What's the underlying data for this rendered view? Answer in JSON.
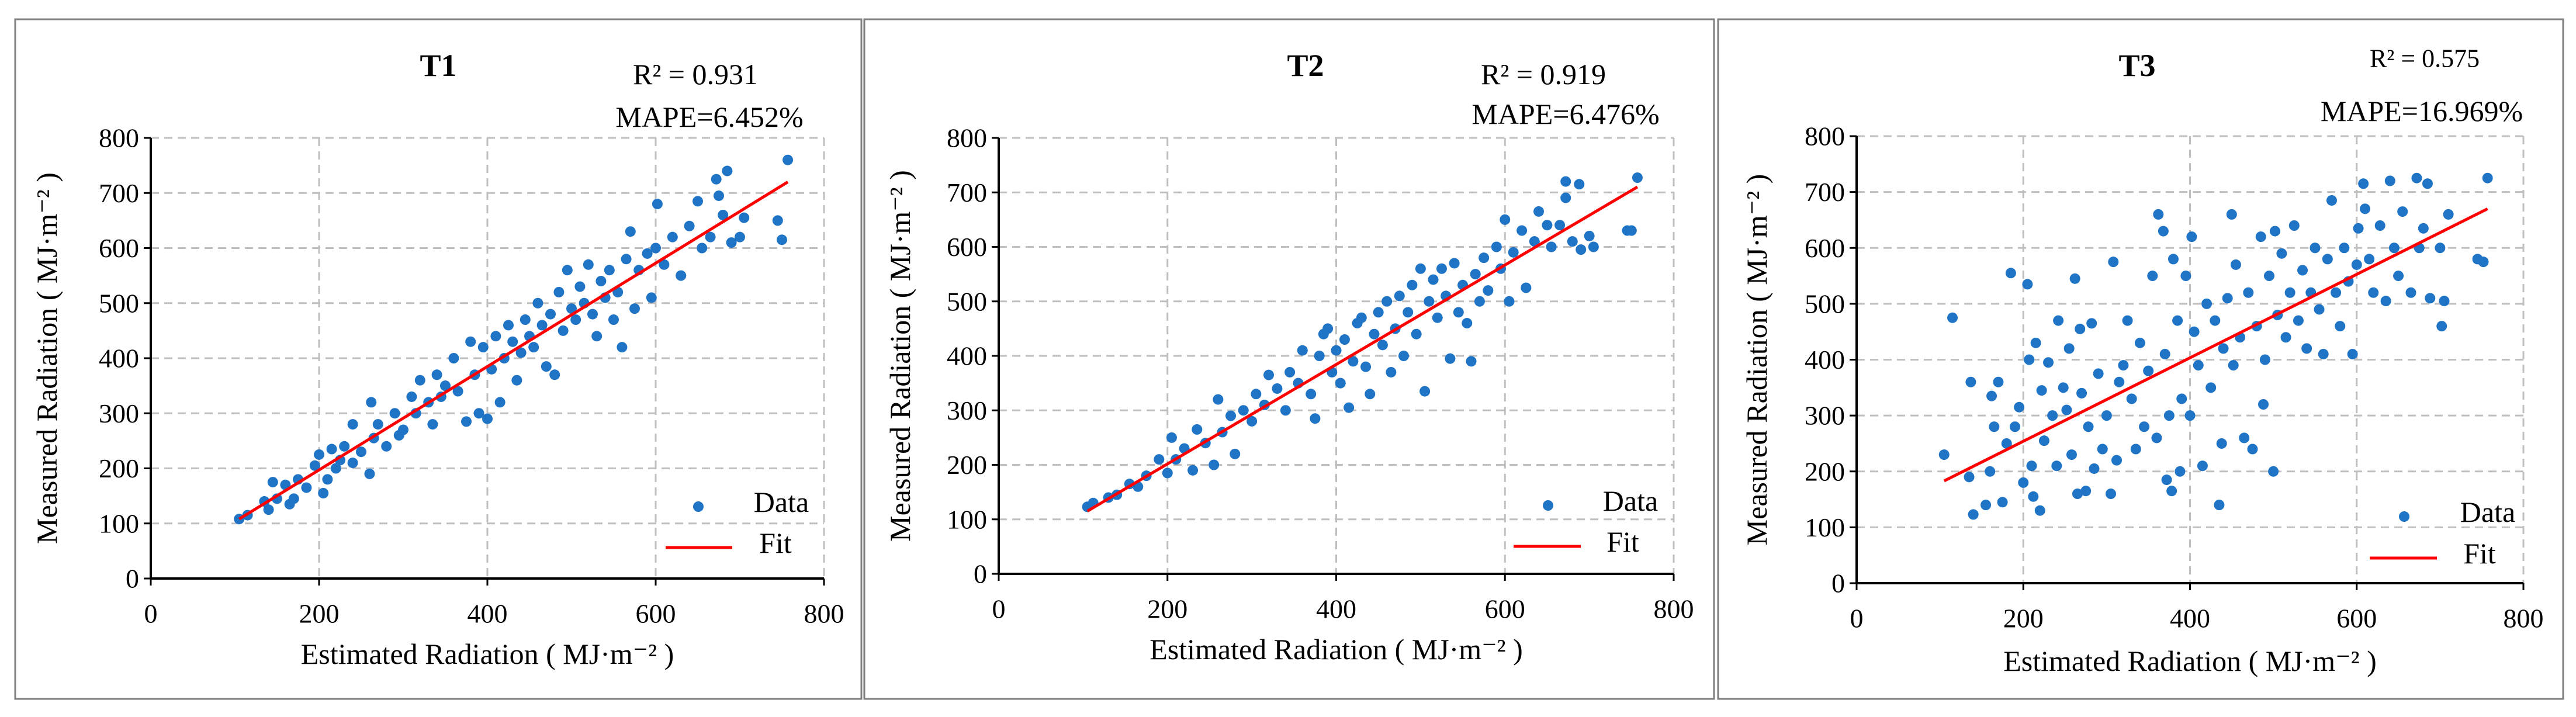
{
  "chart_data": [
    {
      "type": "scatter",
      "title": "T1",
      "r2_label": "R² = 0.931",
      "mape_label": "MAPE=6.452%",
      "xlabel": "Estimated Radiation ( MJ·m⁻² )",
      "ylabel": "Measured Radiation ( MJ·m⁻² )",
      "xlim": [
        0,
        800
      ],
      "ylim": [
        0,
        800
      ],
      "xticks": [
        "0",
        "200",
        "400",
        "600",
        "800"
      ],
      "yticks": [
        "0",
        "100",
        "200",
        "300",
        "400",
        "500",
        "600",
        "700",
        "800"
      ],
      "grid": true,
      "legend": {
        "placement": "bottom-right",
        "entries": [
          "Data",
          "Fit"
        ]
      },
      "colors": {
        "data": "#1f74c6",
        "fit": "#ff0000"
      },
      "fit": {
        "x": [
          105,
          757
        ],
        "y": [
          108,
          720
        ]
      },
      "points": [
        [
          105,
          108
        ],
        [
          115,
          115
        ],
        [
          135,
          140
        ],
        [
          140,
          125
        ],
        [
          145,
          175
        ],
        [
          150,
          145
        ],
        [
          160,
          170
        ],
        [
          165,
          135
        ],
        [
          170,
          145
        ],
        [
          175,
          180
        ],
        [
          185,
          165
        ],
        [
          195,
          205
        ],
        [
          200,
          225
        ],
        [
          205,
          155
        ],
        [
          210,
          180
        ],
        [
          215,
          235
        ],
        [
          220,
          200
        ],
        [
          225,
          215
        ],
        [
          230,
          240
        ],
        [
          240,
          280
        ],
        [
          240,
          210
        ],
        [
          250,
          230
        ],
        [
          260,
          190
        ],
        [
          262,
          320
        ],
        [
          265,
          255
        ],
        [
          270,
          280
        ],
        [
          280,
          240
        ],
        [
          290,
          300
        ],
        [
          295,
          260
        ],
        [
          300,
          270
        ],
        [
          310,
          330
        ],
        [
          315,
          300
        ],
        [
          320,
          360
        ],
        [
          330,
          320
        ],
        [
          335,
          280
        ],
        [
          340,
          370
        ],
        [
          345,
          330
        ],
        [
          350,
          350
        ],
        [
          360,
          400
        ],
        [
          365,
          340
        ],
        [
          375,
          285
        ],
        [
          380,
          430
        ],
        [
          385,
          370
        ],
        [
          390,
          300
        ],
        [
          395,
          420
        ],
        [
          400,
          290
        ],
        [
          405,
          380
        ],
        [
          410,
          440
        ],
        [
          415,
          320
        ],
        [
          420,
          400
        ],
        [
          425,
          460
        ],
        [
          430,
          430
        ],
        [
          435,
          360
        ],
        [
          440,
          410
        ],
        [
          445,
          470
        ],
        [
          450,
          440
        ],
        [
          455,
          420
        ],
        [
          460,
          500
        ],
        [
          465,
          460
        ],
        [
          470,
          385
        ],
        [
          475,
          480
        ],
        [
          480,
          370
        ],
        [
          485,
          520
        ],
        [
          490,
          450
        ],
        [
          495,
          560
        ],
        [
          500,
          490
        ],
        [
          505,
          470
        ],
        [
          510,
          530
        ],
        [
          515,
          500
        ],
        [
          520,
          570
        ],
        [
          525,
          480
        ],
        [
          530,
          440
        ],
        [
          535,
          540
        ],
        [
          540,
          510
        ],
        [
          545,
          560
        ],
        [
          550,
          470
        ],
        [
          555,
          520
        ],
        [
          560,
          420
        ],
        [
          565,
          580
        ],
        [
          570,
          630
        ],
        [
          575,
          490
        ],
        [
          580,
          560
        ],
        [
          590,
          590
        ],
        [
          595,
          510
        ],
        [
          600,
          600
        ],
        [
          602,
          680
        ],
        [
          610,
          570
        ],
        [
          620,
          620
        ],
        [
          630,
          550
        ],
        [
          640,
          640
        ],
        [
          650,
          685
        ],
        [
          655,
          600
        ],
        [
          665,
          620
        ],
        [
          672,
          725
        ],
        [
          675,
          695
        ],
        [
          680,
          660
        ],
        [
          685,
          740
        ],
        [
          690,
          610
        ],
        [
          700,
          620
        ],
        [
          705,
          655
        ],
        [
          745,
          650
        ],
        [
          750,
          615
        ],
        [
          757,
          760
        ]
      ]
    },
    {
      "type": "scatter",
      "title": "T2",
      "r2_label": "R² = 0.919",
      "mape_label": "MAPE=6.476%",
      "xlabel": "Estimated Radiation ( MJ·m⁻² )",
      "ylabel": "Measured Radiation ( MJ·m⁻² )",
      "xlim": [
        0,
        800
      ],
      "ylim": [
        0,
        800
      ],
      "xticks": [
        "0",
        "200",
        "400",
        "600",
        "800"
      ],
      "yticks": [
        "0",
        "100",
        "200",
        "300",
        "400",
        "500",
        "600",
        "700",
        "800"
      ],
      "grid": true,
      "legend": {
        "placement": "bottom-right",
        "entries": [
          "Data",
          "Fit"
        ]
      },
      "colors": {
        "data": "#1f74c6",
        "fit": "#ff0000"
      },
      "fit": {
        "x": [
          105,
          757
        ],
        "y": [
          115,
          710
        ]
      },
      "points": [
        [
          105,
          123
        ],
        [
          112,
          130
        ],
        [
          130,
          140
        ],
        [
          140,
          145
        ],
        [
          155,
          165
        ],
        [
          165,
          160
        ],
        [
          175,
          180
        ],
        [
          190,
          210
        ],
        [
          200,
          185
        ],
        [
          205,
          250
        ],
        [
          210,
          210
        ],
        [
          220,
          230
        ],
        [
          230,
          190
        ],
        [
          235,
          265
        ],
        [
          245,
          240
        ],
        [
          255,
          200
        ],
        [
          260,
          320
        ],
        [
          265,
          260
        ],
        [
          275,
          290
        ],
        [
          280,
          220
        ],
        [
          290,
          300
        ],
        [
          300,
          280
        ],
        [
          305,
          330
        ],
        [
          315,
          310
        ],
        [
          320,
          365
        ],
        [
          330,
          340
        ],
        [
          340,
          300
        ],
        [
          345,
          370
        ],
        [
          355,
          350
        ],
        [
          360,
          410
        ],
        [
          370,
          330
        ],
        [
          375,
          285
        ],
        [
          380,
          400
        ],
        [
          385,
          440
        ],
        [
          390,
          450
        ],
        [
          395,
          370
        ],
        [
          400,
          410
        ],
        [
          405,
          350
        ],
        [
          410,
          430
        ],
        [
          415,
          305
        ],
        [
          420,
          390
        ],
        [
          425,
          460
        ],
        [
          430,
          470
        ],
        [
          435,
          380
        ],
        [
          440,
          330
        ],
        [
          445,
          440
        ],
        [
          450,
          480
        ],
        [
          455,
          420
        ],
        [
          460,
          500
        ],
        [
          465,
          370
        ],
        [
          470,
          450
        ],
        [
          475,
          510
        ],
        [
          480,
          400
        ],
        [
          485,
          480
        ],
        [
          490,
          530
        ],
        [
          495,
          440
        ],
        [
          500,
          560
        ],
        [
          505,
          335
        ],
        [
          510,
          500
        ],
        [
          515,
          540
        ],
        [
          520,
          470
        ],
        [
          525,
          560
        ],
        [
          530,
          510
        ],
        [
          535,
          395
        ],
        [
          540,
          570
        ],
        [
          545,
          480
        ],
        [
          550,
          530
        ],
        [
          555,
          460
        ],
        [
          560,
          390
        ],
        [
          565,
          550
        ],
        [
          570,
          500
        ],
        [
          575,
          580
        ],
        [
          580,
          520
        ],
        [
          590,
          600
        ],
        [
          595,
          560
        ],
        [
          600,
          650
        ],
        [
          605,
          500
        ],
        [
          610,
          590
        ],
        [
          620,
          630
        ],
        [
          625,
          525
        ],
        [
          635,
          610
        ],
        [
          640,
          665
        ],
        [
          650,
          640
        ],
        [
          655,
          600
        ],
        [
          665,
          640
        ],
        [
          672,
          720
        ],
        [
          672,
          690
        ],
        [
          680,
          610
        ],
        [
          688,
          715
        ],
        [
          690,
          595
        ],
        [
          700,
          620
        ],
        [
          705,
          600
        ],
        [
          745,
          630
        ],
        [
          750,
          630
        ],
        [
          757,
          727
        ]
      ]
    },
    {
      "type": "scatter",
      "title": "T3",
      "r2_label": "R² = 0.575",
      "mape_label": "MAPE=16.969%",
      "xlabel": "Estimated Radiation ( MJ·m⁻² )",
      "ylabel": "Measured Radiation ( MJ·m⁻² )",
      "xlim": [
        0,
        800
      ],
      "ylim": [
        0,
        800
      ],
      "xticks": [
        "0",
        "200",
        "400",
        "600",
        "800"
      ],
      "yticks": [
        "0",
        "100",
        "200",
        "300",
        "400",
        "500",
        "600",
        "700",
        "800"
      ],
      "grid": true,
      "legend": {
        "placement": "bottom-right",
        "entries": [
          "Data",
          "Fit"
        ]
      },
      "colors": {
        "data": "#1f74c6",
        "fit": "#ff0000"
      },
      "fit": {
        "x": [
          105,
          757
        ],
        "y": [
          183,
          670
        ]
      },
      "points": [
        [
          105,
          230
        ],
        [
          115,
          475
        ],
        [
          135,
          190
        ],
        [
          137,
          360
        ],
        [
          140,
          123
        ],
        [
          155,
          140
        ],
        [
          160,
          200
        ],
        [
          162,
          335
        ],
        [
          165,
          280
        ],
        [
          170,
          360
        ],
        [
          175,
          145
        ],
        [
          180,
          250
        ],
        [
          185,
          555
        ],
        [
          190,
          280
        ],
        [
          195,
          315
        ],
        [
          200,
          180
        ],
        [
          205,
          535
        ],
        [
          207,
          400
        ],
        [
          210,
          210
        ],
        [
          212,
          155
        ],
        [
          215,
          430
        ],
        [
          220,
          130
        ],
        [
          222,
          345
        ],
        [
          225,
          255
        ],
        [
          230,
          395
        ],
        [
          235,
          300
        ],
        [
          240,
          210
        ],
        [
          242,
          470
        ],
        [
          248,
          350
        ],
        [
          252,
          310
        ],
        [
          255,
          420
        ],
        [
          258,
          230
        ],
        [
          262,
          545
        ],
        [
          265,
          160
        ],
        [
          268,
          455
        ],
        [
          270,
          340
        ],
        [
          275,
          165
        ],
        [
          278,
          280
        ],
        [
          282,
          465
        ],
        [
          285,
          205
        ],
        [
          290,
          375
        ],
        [
          295,
          240
        ],
        [
          300,
          300
        ],
        [
          305,
          160
        ],
        [
          308,
          575
        ],
        [
          312,
          220
        ],
        [
          315,
          360
        ],
        [
          320,
          390
        ],
        [
          325,
          470
        ],
        [
          330,
          330
        ],
        [
          335,
          240
        ],
        [
          340,
          430
        ],
        [
          345,
          280
        ],
        [
          350,
          380
        ],
        [
          355,
          550
        ],
        [
          360,
          260
        ],
        [
          362,
          660
        ],
        [
          368,
          630
        ],
        [
          370,
          410
        ],
        [
          372,
          185
        ],
        [
          375,
          300
        ],
        [
          378,
          165
        ],
        [
          380,
          580
        ],
        [
          385,
          470
        ],
        [
          388,
          200
        ],
        [
          390,
          330
        ],
        [
          395,
          550
        ],
        [
          400,
          300
        ],
        [
          402,
          620
        ],
        [
          405,
          450
        ],
        [
          410,
          390
        ],
        [
          415,
          210
        ],
        [
          420,
          500
        ],
        [
          425,
          350
        ],
        [
          430,
          470
        ],
        [
          435,
          140
        ],
        [
          438,
          250
        ],
        [
          440,
          420
        ],
        [
          445,
          510
        ],
        [
          450,
          660
        ],
        [
          452,
          390
        ],
        [
          455,
          570
        ],
        [
          460,
          440
        ],
        [
          465,
          260
        ],
        [
          470,
          520
        ],
        [
          475,
          240
        ],
        [
          480,
          460
        ],
        [
          485,
          620
        ],
        [
          488,
          320
        ],
        [
          490,
          400
        ],
        [
          495,
          550
        ],
        [
          500,
          200
        ],
        [
          502,
          630
        ],
        [
          505,
          480
        ],
        [
          510,
          590
        ],
        [
          515,
          440
        ],
        [
          520,
          520
        ],
        [
          525,
          640
        ],
        [
          530,
          470
        ],
        [
          535,
          560
        ],
        [
          540,
          420
        ],
        [
          545,
          520
        ],
        [
          550,
          600
        ],
        [
          555,
          490
        ],
        [
          560,
          410
        ],
        [
          565,
          580
        ],
        [
          570,
          685
        ],
        [
          575,
          520
        ],
        [
          580,
          460
        ],
        [
          585,
          600
        ],
        [
          590,
          540
        ],
        [
          595,
          410
        ],
        [
          600,
          570
        ],
        [
          602,
          635
        ],
        [
          608,
          715
        ],
        [
          610,
          670
        ],
        [
          615,
          580
        ],
        [
          620,
          520
        ],
        [
          628,
          640
        ],
        [
          635,
          505
        ],
        [
          640,
          720
        ],
        [
          645,
          600
        ],
        [
          650,
          550
        ],
        [
          655,
          665
        ],
        [
          665,
          520
        ],
        [
          672,
          725
        ],
        [
          675,
          600
        ],
        [
          680,
          635
        ],
        [
          685,
          715
        ],
        [
          688,
          510
        ],
        [
          700,
          600
        ],
        [
          702,
          460
        ],
        [
          705,
          505
        ],
        [
          710,
          660
        ],
        [
          745,
          580
        ],
        [
          752,
          575
        ],
        [
          757,
          725
        ]
      ]
    }
  ]
}
